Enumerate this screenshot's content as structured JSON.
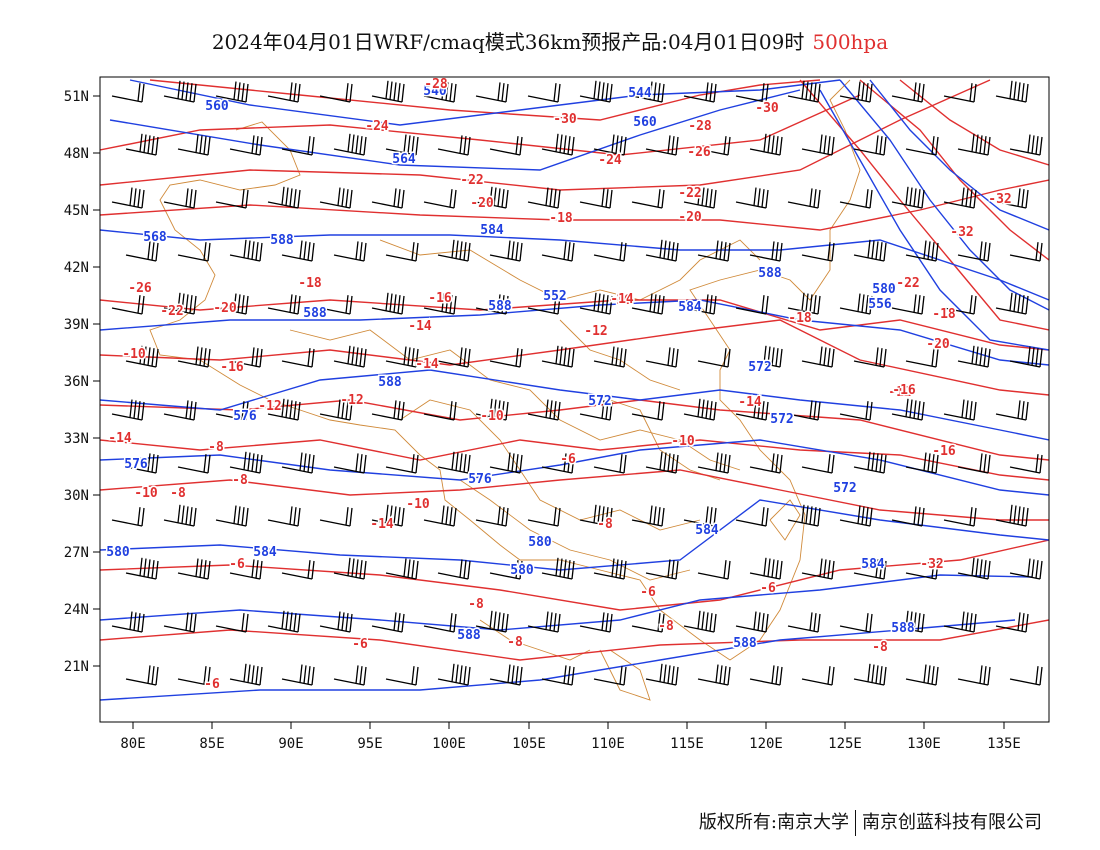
{
  "title": {
    "main": "2024年04月01日WRF/cmaq模式36km预报产品:04月01日09时",
    "level": "500hpa"
  },
  "axes": {
    "lon_ticks": [
      "80E",
      "85E",
      "90E",
      "95E",
      "100E",
      "105E",
      "110E",
      "115E",
      "120E",
      "125E",
      "130E",
      "135E"
    ],
    "lat_ticks": [
      "51N",
      "48N",
      "45N",
      "42N",
      "39N",
      "36N",
      "33N",
      "30N",
      "27N",
      "24N",
      "21N"
    ]
  },
  "colors": {
    "height_contour": "#2040e0",
    "temperature_contour": "#e03030",
    "border": "#d08a3a",
    "wind_barb": "#000000"
  },
  "height_labels": [
    "560",
    "540",
    "544",
    "560",
    "564",
    "584",
    "568",
    "588",
    "588",
    "588",
    "584",
    "588",
    "580",
    "552",
    "556",
    "588",
    "572",
    "572",
    "576",
    "572",
    "576",
    "576",
    "572",
    "580",
    "580",
    "584",
    "580",
    "584",
    "584",
    "588",
    "588",
    "588"
  ],
  "temperature_labels": [
    "-28",
    "-24",
    "-30",
    "-28",
    "-30",
    "-32",
    "-24",
    "-26",
    "-22",
    "-22",
    "-20",
    "-18",
    "-20",
    "-22",
    "-26",
    "-20",
    "-18",
    "-16",
    "-16",
    "-14",
    "-12",
    "-14",
    "-16",
    "-18",
    "-14",
    "-12",
    "-12",
    "-10",
    "-10",
    "-8",
    "-10",
    "-10",
    "-14",
    "-10",
    "-14",
    "-16",
    "-12",
    "-8",
    "-8",
    "-6",
    "-8",
    "-8",
    "-6",
    "-6",
    "-6",
    "-8",
    "-6",
    "-8",
    "-6",
    "-8",
    "-32",
    "-32",
    "-18",
    "-22",
    "-20",
    "-16",
    "-14"
  ],
  "footer": {
    "copyright": "版权所有:南京大学",
    "company": "南京创蓝科技有限公司"
  }
}
